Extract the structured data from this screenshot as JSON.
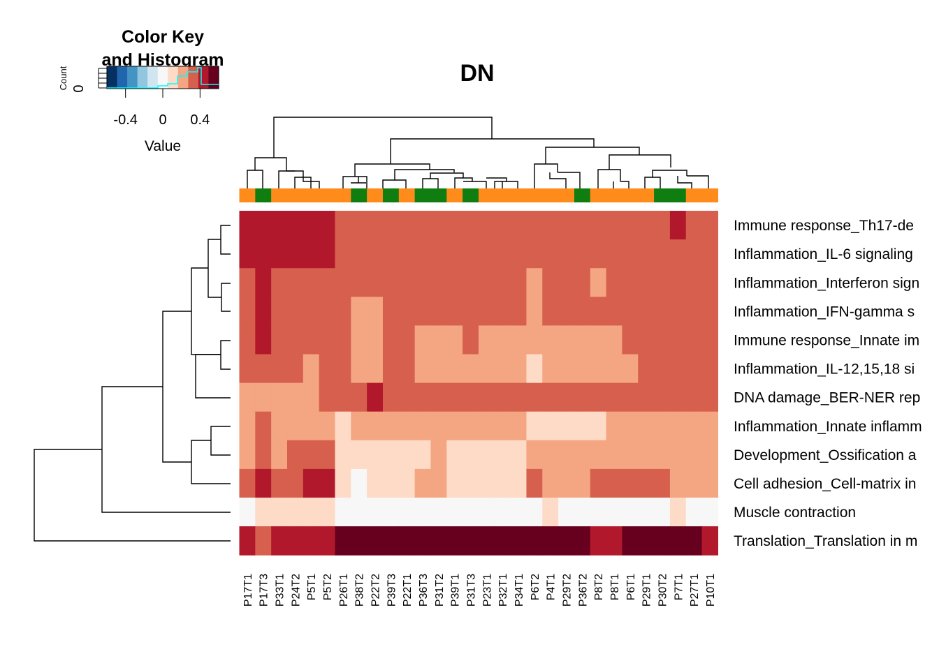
{
  "chart_data": {
    "type": "heatmap",
    "title": "DN",
    "color_key": {
      "title_line1": "Color Key",
      "title_line2": "and Histogram",
      "ylabel": "Count",
      "ytick": "0",
      "xlabel": "Value",
      "xticks": [
        "-0.4",
        "0",
        "0.4"
      ],
      "xtick_values": [
        -0.4,
        0,
        0.4
      ],
      "range": [
        -0.6,
        0.6
      ],
      "palette": [
        "#053061",
        "#2166ac",
        "#4393c3",
        "#92c5de",
        "#d1e5f0",
        "#f7f7f7",
        "#fddbc7",
        "#f4a582",
        "#d6604d",
        "#b2182b",
        "#67001f"
      ]
    },
    "columns": [
      "P17T1",
      "P17T3",
      "P33T1",
      "P24T2",
      "P5T1",
      "P5T2",
      "P26T1",
      "P38T2",
      "P22T2",
      "P39T3",
      "P22T1",
      "P36T3",
      "P31T2",
      "P39T1",
      "P31T3",
      "P23T1",
      "P32T1",
      "P34T1",
      "P6T2",
      "P4T1",
      "P29T2",
      "P36T2",
      "P8T2",
      "P8T1",
      "P6T1",
      "P29T1",
      "P30T2",
      "P7T1",
      "P27T1",
      "P10T1"
    ],
    "column_groups": [
      "orange",
      "green",
      "orange",
      "orange",
      "orange",
      "orange",
      "orange",
      "green",
      "orange",
      "green",
      "orange",
      "green",
      "green",
      "orange",
      "green",
      "orange",
      "orange",
      "orange",
      "orange",
      "orange",
      "orange",
      "green",
      "orange",
      "orange",
      "orange",
      "orange",
      "green",
      "green",
      "orange",
      "orange"
    ],
    "group_colors": {
      "orange": "#ff8c1a",
      "green": "#0f7d0f"
    },
    "rows": [
      "Immune response_Th17-de",
      "Inflammation_IL-6 signaling",
      "Inflammation_Interferon sign",
      "Inflammation_IFN-gamma s",
      "Immune response_Innate im",
      "Inflammation_IL-12,15,18 si",
      "DNA damage_BER-NER rep",
      "Inflammation_Innate inflamm",
      "Development_Ossification a",
      "Cell adhesion_Cell-matrix in",
      "Muscle contraction",
      "Translation_Translation in m"
    ],
    "values": [
      [
        0.45,
        0.45,
        0.45,
        0.45,
        0.45,
        0.45,
        0.35,
        0.35,
        0.35,
        0.35,
        0.35,
        0.35,
        0.35,
        0.35,
        0.35,
        0.35,
        0.35,
        0.35,
        0.35,
        0.35,
        0.35,
        0.35,
        0.35,
        0.35,
        0.35,
        0.35,
        0.35,
        0.45,
        0.35,
        0.35
      ],
      [
        0.45,
        0.45,
        0.45,
        0.45,
        0.45,
        0.45,
        0.35,
        0.35,
        0.35,
        0.35,
        0.35,
        0.35,
        0.35,
        0.35,
        0.35,
        0.35,
        0.35,
        0.35,
        0.35,
        0.35,
        0.35,
        0.35,
        0.35,
        0.35,
        0.35,
        0.35,
        0.35,
        0.35,
        0.35,
        0.35
      ],
      [
        0.35,
        0.45,
        0.35,
        0.35,
        0.35,
        0.35,
        0.35,
        0.35,
        0.35,
        0.35,
        0.35,
        0.35,
        0.35,
        0.35,
        0.35,
        0.35,
        0.35,
        0.35,
        0.25,
        0.35,
        0.35,
        0.35,
        0.25,
        0.35,
        0.35,
        0.35,
        0.35,
        0.35,
        0.35,
        0.35
      ],
      [
        0.35,
        0.45,
        0.35,
        0.35,
        0.35,
        0.35,
        0.35,
        0.25,
        0.25,
        0.35,
        0.35,
        0.35,
        0.35,
        0.35,
        0.35,
        0.35,
        0.35,
        0.35,
        0.25,
        0.35,
        0.35,
        0.35,
        0.35,
        0.35,
        0.35,
        0.35,
        0.35,
        0.35,
        0.35,
        0.35
      ],
      [
        0.35,
        0.45,
        0.35,
        0.35,
        0.35,
        0.35,
        0.35,
        0.25,
        0.25,
        0.35,
        0.35,
        0.25,
        0.25,
        0.25,
        0.35,
        0.25,
        0.25,
        0.25,
        0.25,
        0.25,
        0.25,
        0.25,
        0.25,
        0.25,
        0.35,
        0.35,
        0.35,
        0.35,
        0.35,
        0.35
      ],
      [
        0.35,
        0.35,
        0.35,
        0.35,
        0.25,
        0.35,
        0.35,
        0.25,
        0.25,
        0.35,
        0.35,
        0.25,
        0.25,
        0.25,
        0.25,
        0.25,
        0.25,
        0.25,
        0.15,
        0.25,
        0.25,
        0.25,
        0.25,
        0.25,
        0.25,
        0.35,
        0.35,
        0.35,
        0.35,
        0.35
      ],
      [
        0.25,
        0.25,
        0.25,
        0.25,
        0.25,
        0.35,
        0.35,
        0.35,
        0.45,
        0.35,
        0.35,
        0.35,
        0.35,
        0.35,
        0.35,
        0.35,
        0.35,
        0.35,
        0.35,
        0.35,
        0.35,
        0.35,
        0.35,
        0.35,
        0.35,
        0.35,
        0.35,
        0.35,
        0.35,
        0.35
      ],
      [
        0.25,
        0.35,
        0.25,
        0.25,
        0.25,
        0.25,
        0.15,
        0.25,
        0.25,
        0.25,
        0.25,
        0.25,
        0.25,
        0.25,
        0.25,
        0.25,
        0.25,
        0.25,
        0.15,
        0.15,
        0.15,
        0.15,
        0.15,
        0.25,
        0.25,
        0.25,
        0.25,
        0.25,
        0.25,
        0.25
      ],
      [
        0.25,
        0.35,
        0.25,
        0.35,
        0.35,
        0.35,
        0.15,
        0.15,
        0.15,
        0.15,
        0.15,
        0.15,
        0.25,
        0.15,
        0.15,
        0.15,
        0.15,
        0.15,
        0.25,
        0.25,
        0.25,
        0.25,
        0.25,
        0.25,
        0.25,
        0.25,
        0.25,
        0.25,
        0.25,
        0.25
      ],
      [
        0.35,
        0.45,
        0.35,
        0.35,
        0.45,
        0.45,
        0.15,
        0.0,
        0.15,
        0.15,
        0.15,
        0.25,
        0.25,
        0.15,
        0.15,
        0.15,
        0.15,
        0.15,
        0.35,
        0.25,
        0.25,
        0.25,
        0.35,
        0.35,
        0.35,
        0.35,
        0.35,
        0.25,
        0.25,
        0.25
      ],
      [
        0.0,
        0.15,
        0.15,
        0.15,
        0.15,
        0.15,
        0.0,
        0.0,
        0.0,
        0.0,
        0.0,
        0.0,
        0.0,
        0.0,
        0.0,
        0.0,
        0.0,
        0.0,
        0.0,
        0.15,
        0.0,
        0.0,
        0.0,
        0.0,
        0.0,
        0.0,
        0.0,
        0.15,
        0.0,
        0.0
      ],
      [
        0.45,
        0.35,
        0.45,
        0.45,
        0.45,
        0.45,
        0.55,
        0.55,
        0.55,
        0.55,
        0.55,
        0.55,
        0.55,
        0.55,
        0.55,
        0.55,
        0.55,
        0.55,
        0.55,
        0.55,
        0.55,
        0.55,
        0.45,
        0.45,
        0.55,
        0.55,
        0.55,
        0.55,
        0.55,
        0.45
      ]
    ]
  }
}
